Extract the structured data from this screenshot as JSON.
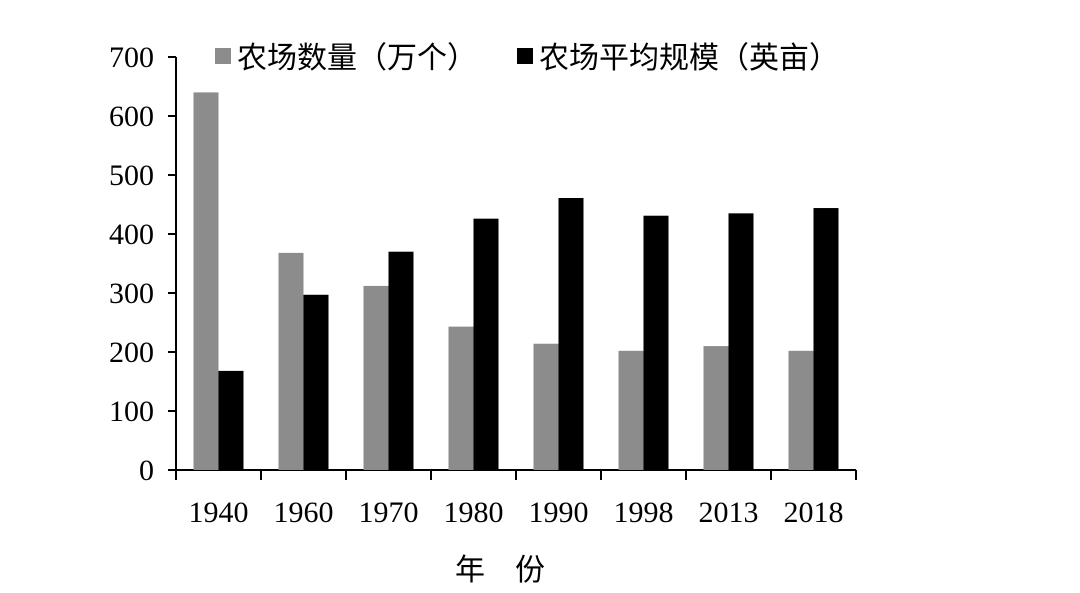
{
  "chart_data": {
    "type": "bar",
    "categories": [
      "1940",
      "1960",
      "1970",
      "1980",
      "1990",
      "1998",
      "2013",
      "2018"
    ],
    "series": [
      {
        "name": "农场数量（万个）",
        "color": "#8c8c8c",
        "values": [
          640,
          368,
          312,
          243,
          214,
          202,
          210,
          202
        ]
      },
      {
        "name": "农场平均规模（英亩）",
        "color": "#000000",
        "values": [
          168,
          297,
          370,
          426,
          461,
          431,
          435,
          444
        ]
      }
    ],
    "title": "",
    "xlabel": "年　份",
    "ylabel": "",
    "ylim": [
      0,
      700
    ],
    "yticks": [
      0,
      100,
      200,
      300,
      400,
      500,
      600,
      700
    ],
    "grid": false,
    "legend_position": "top"
  }
}
